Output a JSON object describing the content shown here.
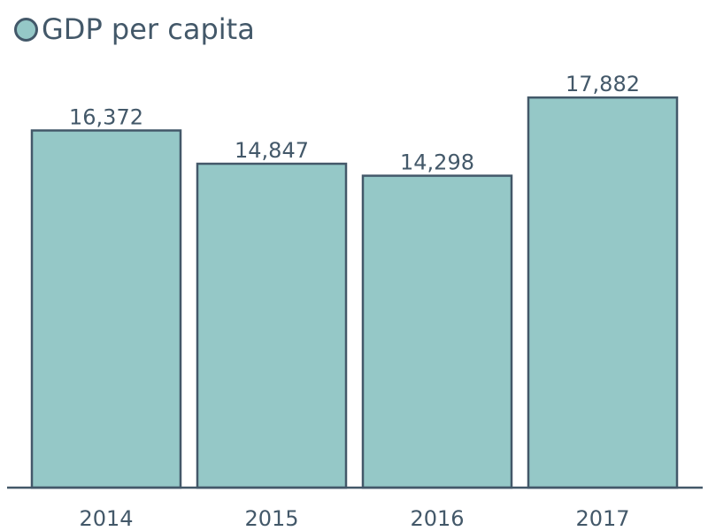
{
  "colors": {
    "bar_fill": "#95c8c7",
    "bar_stroke": "#435869",
    "text": "#435869",
    "axis": "#435869"
  },
  "chart_data": {
    "type": "bar",
    "categories": [
      "2014",
      "2015",
      "2016",
      "2017"
    ],
    "series": [
      {
        "name": "GDP per capita",
        "values": [
          16372,
          14847,
          14298,
          17882
        ],
        "labels": [
          "16,372",
          "14,847",
          "14,298",
          "17,882"
        ]
      }
    ],
    "ylim": [
      0,
      20000
    ],
    "grid": false,
    "legend": "top-left",
    "title": "",
    "xlabel": "",
    "ylabel": ""
  }
}
